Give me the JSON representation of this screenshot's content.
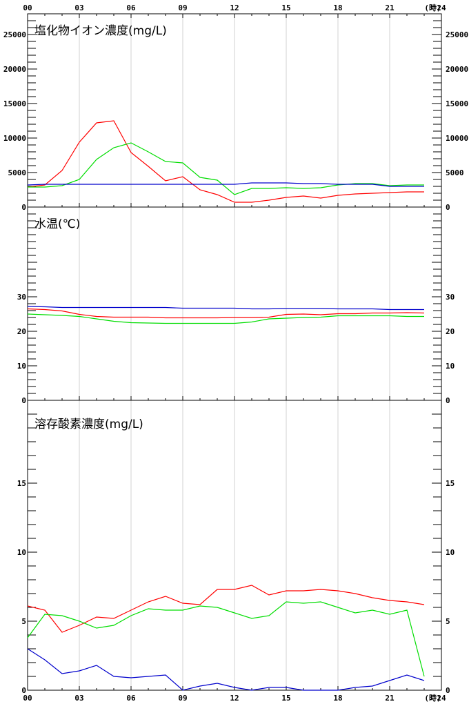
{
  "chart_data": [
    {
      "type": "line",
      "title": "塩化物イオン濃度(mg/L)",
      "ylim": [
        0,
        28000
      ],
      "yticks": [
        0,
        5000,
        10000,
        15000,
        20000,
        25000
      ],
      "x": [
        0,
        1,
        2,
        3,
        4,
        5,
        6,
        7,
        8,
        9,
        10,
        11,
        12,
        13,
        14,
        15,
        16,
        17,
        18,
        19,
        20,
        21,
        22,
        23
      ],
      "series": [
        {
          "color": "#ff0000",
          "values": [
            2900,
            3200,
            5300,
            9400,
            12200,
            12500,
            7900,
            5900,
            3800,
            4400,
            2500,
            1800,
            700,
            700,
            1000,
            1400,
            1600,
            1300,
            1700,
            1900,
            2000,
            2100,
            2200,
            2200
          ]
        },
        {
          "color": "#00dd00",
          "values": [
            2900,
            2900,
            3100,
            4000,
            6900,
            8600,
            9300,
            8000,
            6600,
            6400,
            4300,
            3900,
            1800,
            2700,
            2700,
            2800,
            2700,
            2800,
            3200,
            3400,
            3400,
            3100,
            3200,
            3200
          ]
        },
        {
          "color": "#0000cc",
          "values": [
            3200,
            3300,
            3300,
            3300,
            3300,
            3300,
            3300,
            3300,
            3300,
            3300,
            3300,
            3300,
            3300,
            3500,
            3500,
            3500,
            3400,
            3400,
            3300,
            3300,
            3300,
            3000,
            3000,
            3000
          ]
        }
      ]
    },
    {
      "type": "line",
      "title": "水温(℃)",
      "ylim": [
        0,
        56
      ],
      "yticks": [
        0,
        10,
        20,
        30
      ],
      "x": [
        0,
        1,
        2,
        3,
        4,
        5,
        6,
        7,
        8,
        9,
        10,
        11,
        12,
        13,
        14,
        15,
        16,
        17,
        18,
        19,
        20,
        21,
        22,
        23
      ],
      "series": [
        {
          "color": "#ff0000",
          "values": [
            26.5,
            26.3,
            25.9,
            24.9,
            24.3,
            24.1,
            24.1,
            24.1,
            23.9,
            23.9,
            23.9,
            23.9,
            24.0,
            24.0,
            24.1,
            24.9,
            25.0,
            24.8,
            25.1,
            25.1,
            25.3,
            25.3,
            25.4,
            25.3
          ]
        },
        {
          "color": "#00dd00",
          "values": [
            25.0,
            24.8,
            24.6,
            24.3,
            23.6,
            22.9,
            22.5,
            22.4,
            22.3,
            22.3,
            22.3,
            22.3,
            22.3,
            22.7,
            23.6,
            23.8,
            24.0,
            24.1,
            24.5,
            24.5,
            24.5,
            24.5,
            24.3,
            24.3
          ]
        },
        {
          "color": "#0000cc",
          "values": [
            27.2,
            27.1,
            26.9,
            26.9,
            26.9,
            26.9,
            26.9,
            26.9,
            26.9,
            26.7,
            26.7,
            26.7,
            26.7,
            26.5,
            26.5,
            26.6,
            26.6,
            26.6,
            26.5,
            26.5,
            26.5,
            26.3,
            26.3,
            26.3
          ]
        }
      ]
    },
    {
      "type": "line",
      "title": "溶存酸素濃度(mg/L)",
      "ylim": [
        0,
        21
      ],
      "yticks": [
        0,
        5,
        10,
        15
      ],
      "x": [
        0,
        1,
        2,
        3,
        4,
        5,
        6,
        7,
        8,
        9,
        10,
        11,
        12,
        13,
        14,
        15,
        16,
        17,
        18,
        19,
        20,
        21,
        22,
        23
      ],
      "series": [
        {
          "color": "#ff0000",
          "values": [
            6.1,
            5.8,
            4.2,
            4.7,
            5.3,
            5.2,
            5.8,
            6.4,
            6.8,
            6.3,
            6.2,
            7.3,
            7.3,
            7.6,
            6.9,
            7.2,
            7.2,
            7.3,
            7.2,
            7.0,
            6.7,
            6.5,
            6.4,
            6.2
          ]
        },
        {
          "color": "#00dd00",
          "values": [
            3.8,
            5.5,
            5.4,
            5.0,
            4.5,
            4.7,
            5.4,
            5.9,
            5.8,
            5.8,
            6.1,
            6.0,
            5.6,
            5.2,
            5.4,
            6.4,
            6.3,
            6.4,
            6.0,
            5.6,
            5.8,
            5.5,
            5.8,
            1.0
          ]
        },
        {
          "color": "#0000cc",
          "values": [
            3.0,
            2.2,
            1.2,
            1.4,
            1.8,
            1.0,
            0.9,
            1.0,
            1.1,
            0.0,
            0.3,
            0.5,
            0.2,
            0.0,
            0.2,
            0.2,
            0.0,
            0.0,
            0.0,
            0.2,
            0.3,
            0.7,
            1.1,
            0.7
          ]
        }
      ]
    }
  ],
  "x_axis": {
    "ticks": [
      "00",
      "03",
      "06",
      "09",
      "12",
      "15",
      "18",
      "21",
      "24"
    ],
    "unit": "(時)"
  }
}
